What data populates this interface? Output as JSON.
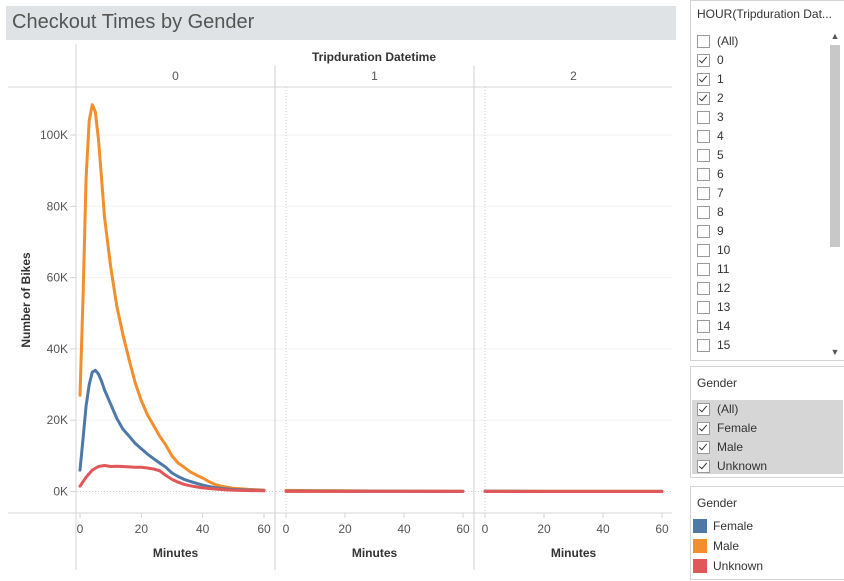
{
  "title": "Checkout Times by Gender",
  "chart_data": {
    "type": "line",
    "column_header": "Tripduration Datetime",
    "panels": [
      "0",
      "1",
      "2"
    ],
    "ylabel": "Number of Bikes",
    "xlabel": "Minutes",
    "ylim": [
      0,
      110000
    ],
    "yticks": [
      0,
      20000,
      40000,
      60000,
      80000,
      100000
    ],
    "ytick_labels": [
      "0K",
      "20K",
      "40K",
      "60K",
      "80K",
      "100K"
    ],
    "xlim": [
      0,
      60
    ],
    "xticks": [
      0,
      20,
      40,
      60
    ],
    "xtick_labels": [
      "0",
      "20",
      "40",
      "60"
    ],
    "series": [
      {
        "name": "Male",
        "color": "#f28e2b",
        "panel_data": [
          [
            [
              0,
              27000
            ],
            [
              1,
              55000
            ],
            [
              2,
              88000
            ],
            [
              3,
              104000
            ],
            [
              4,
              108500
            ],
            [
              5,
              106500
            ],
            [
              6,
              99000
            ],
            [
              7,
              88000
            ],
            [
              8,
              77000
            ],
            [
              10,
              63000
            ],
            [
              12,
              52000
            ],
            [
              14,
              44000
            ],
            [
              16,
              37000
            ],
            [
              18,
              30500
            ],
            [
              20,
              25500
            ],
            [
              22,
              21500
            ],
            [
              24,
              18500
            ],
            [
              26,
              15500
            ],
            [
              28,
              13000
            ],
            [
              30,
              10000
            ],
            [
              32,
              8000
            ],
            [
              34,
              6800
            ],
            [
              36,
              5500
            ],
            [
              38,
              4600
            ],
            [
              40,
              3800
            ],
            [
              42,
              2800
            ],
            [
              44,
              2000
            ],
            [
              46,
              1500
            ],
            [
              48,
              1200
            ],
            [
              50,
              900
            ],
            [
              55,
              600
            ],
            [
              60,
              400
            ]
          ],
          [
            [
              0,
              300
            ],
            [
              10,
              250
            ],
            [
              20,
              200
            ],
            [
              30,
              150
            ],
            [
              40,
              120
            ],
            [
              50,
              100
            ],
            [
              60,
              80
            ]
          ],
          [
            [
              0,
              100
            ],
            [
              10,
              100
            ],
            [
              20,
              90
            ],
            [
              30,
              80
            ],
            [
              40,
              70
            ],
            [
              50,
              60
            ],
            [
              60,
              60
            ]
          ]
        ]
      },
      {
        "name": "Female",
        "color": "#4e79a7",
        "panel_data": [
          [
            [
              0,
              6000
            ],
            [
              1,
              15000
            ],
            [
              2,
              24000
            ],
            [
              3,
              30000
            ],
            [
              4,
              33500
            ],
            [
              5,
              34000
            ],
            [
              6,
              33000
            ],
            [
              7,
              31000
            ],
            [
              8,
              28500
            ],
            [
              10,
              24500
            ],
            [
              12,
              20500
            ],
            [
              14,
              17500
            ],
            [
              16,
              15500
            ],
            [
              18,
              13500
            ],
            [
              20,
              12000
            ],
            [
              22,
              10500
            ],
            [
              24,
              9200
            ],
            [
              26,
              8000
            ],
            [
              28,
              6800
            ],
            [
              30,
              5200
            ],
            [
              32,
              4200
            ],
            [
              34,
              3400
            ],
            [
              36,
              2800
            ],
            [
              38,
              2300
            ],
            [
              40,
              1800
            ],
            [
              42,
              1400
            ],
            [
              44,
              1100
            ],
            [
              46,
              850
            ],
            [
              48,
              700
            ],
            [
              50,
              550
            ],
            [
              55,
              400
            ],
            [
              60,
              300
            ]
          ],
          [
            [
              0,
              120
            ],
            [
              10,
              100
            ],
            [
              20,
              80
            ],
            [
              30,
              60
            ],
            [
              40,
              50
            ],
            [
              50,
              40
            ],
            [
              60,
              40
            ]
          ],
          [
            [
              0,
              50
            ],
            [
              10,
              45
            ],
            [
              20,
              40
            ],
            [
              30,
              35
            ],
            [
              40,
              30
            ],
            [
              50,
              30
            ],
            [
              60,
              30
            ]
          ]
        ]
      },
      {
        "name": "Unknown",
        "color": "#e15759",
        "panel_data": [
          [
            [
              0,
              1500
            ],
            [
              2,
              4000
            ],
            [
              4,
              6000
            ],
            [
              6,
              7000
            ],
            [
              8,
              7300
            ],
            [
              10,
              7000
            ],
            [
              12,
              7100
            ],
            [
              14,
              7000
            ],
            [
              16,
              6900
            ],
            [
              18,
              6800
            ],
            [
              20,
              6800
            ],
            [
              22,
              6600
            ],
            [
              24,
              6300
            ],
            [
              26,
              5800
            ],
            [
              28,
              4500
            ],
            [
              30,
              3400
            ],
            [
              32,
              2600
            ],
            [
              34,
              2000
            ],
            [
              36,
              1600
            ],
            [
              38,
              1300
            ],
            [
              40,
              1000
            ],
            [
              44,
              700
            ],
            [
              48,
              450
            ],
            [
              52,
              300
            ],
            [
              56,
              250
            ],
            [
              60,
              200
            ]
          ],
          [
            [
              0,
              30
            ],
            [
              20,
              25
            ],
            [
              40,
              20
            ],
            [
              60,
              20
            ]
          ],
          [
            [
              0,
              15
            ],
            [
              20,
              12
            ],
            [
              40,
              10
            ],
            [
              60,
              10
            ]
          ]
        ]
      }
    ]
  },
  "hour_filter": {
    "title": "HOUR(Tripduration Dat...",
    "items": [
      {
        "label": "(All)",
        "checked": false
      },
      {
        "label": "0",
        "checked": true
      },
      {
        "label": "1",
        "checked": true
      },
      {
        "label": "2",
        "checked": true
      },
      {
        "label": "3",
        "checked": false
      },
      {
        "label": "4",
        "checked": false
      },
      {
        "label": "5",
        "checked": false
      },
      {
        "label": "6",
        "checked": false
      },
      {
        "label": "7",
        "checked": false
      },
      {
        "label": "8",
        "checked": false
      },
      {
        "label": "9",
        "checked": false
      },
      {
        "label": "10",
        "checked": false
      },
      {
        "label": "11",
        "checked": false
      },
      {
        "label": "12",
        "checked": false
      },
      {
        "label": "13",
        "checked": false
      },
      {
        "label": "14",
        "checked": false
      },
      {
        "label": "15",
        "checked": false
      }
    ]
  },
  "gender_filter": {
    "title": "Gender",
    "items": [
      {
        "label": "(All)",
        "checked": true
      },
      {
        "label": "Female",
        "checked": true
      },
      {
        "label": "Male",
        "checked": true
      },
      {
        "label": "Unknown",
        "checked": true
      }
    ]
  },
  "gender_legend": {
    "title": "Gender",
    "items": [
      {
        "label": "Female",
        "color": "#4e79a7"
      },
      {
        "label": "Male",
        "color": "#f28e2b"
      },
      {
        "label": "Unknown",
        "color": "#e15759"
      }
    ]
  }
}
